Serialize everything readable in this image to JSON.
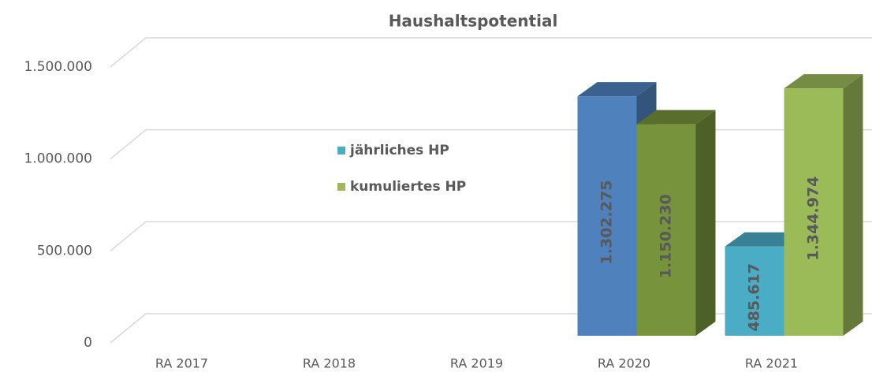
{
  "chart_data": {
    "type": "bar3d",
    "title": "Haushaltspotential",
    "categories": [
      "RA 2017",
      "RA 2018",
      "RA 2019",
      "RA 2020",
      "RA 2021"
    ],
    "series": [
      {
        "name": "jährliches HP",
        "color": "#4bacc6",
        "colors": [
          "#4bacc6",
          "#4bacc6",
          "#4bacc6",
          "#4f81bd",
          "#4bacc6"
        ],
        "values": [
          null,
          null,
          null,
          1302275,
          485617
        ],
        "value_labels": [
          null,
          null,
          null,
          "1.302.275",
          "485.617"
        ]
      },
      {
        "name": "kumuliertes HP",
        "color": "#9bbb59",
        "colors": [
          "#9bbb59",
          "#9bbb59",
          "#9bbb59",
          "#77933c",
          "#9bbb59"
        ],
        "values": [
          null,
          null,
          null,
          1150230,
          1344974
        ],
        "value_labels": [
          null,
          null,
          null,
          "1.150.230",
          "1.344.974"
        ]
      }
    ],
    "ylim": [
      0,
      1500000
    ],
    "yticks": [
      0,
      {
        "value": 500000,
        "label": "500.000"
      },
      {
        "value": 1000000,
        "label": "1.000.000"
      },
      {
        "value": 1500000,
        "label": "1.500.000"
      }
    ],
    "grid": true
  }
}
